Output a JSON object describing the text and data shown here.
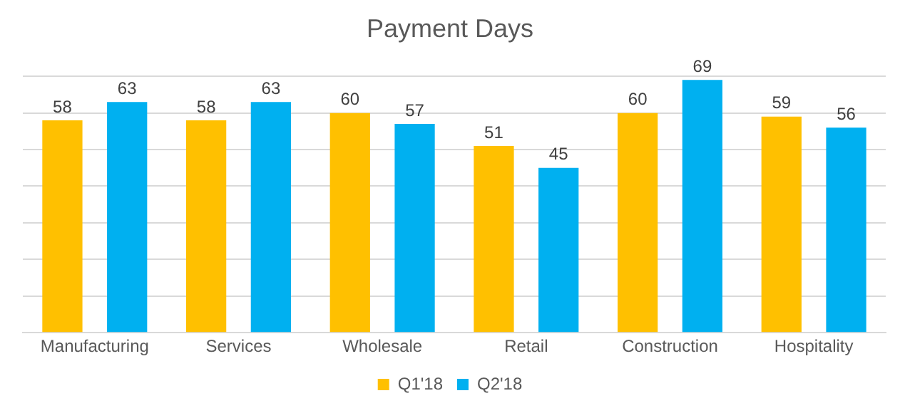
{
  "chart_data": {
    "type": "bar",
    "title": "Payment Days",
    "categories": [
      "Manufacturing",
      "Services",
      "Wholesale",
      "Retail",
      "Construction",
      "Hospitality"
    ],
    "series": [
      {
        "name": "Q1'18",
        "color": "#ffc000",
        "values": [
          58,
          58,
          60,
          51,
          60,
          59
        ]
      },
      {
        "name": "Q2'18",
        "color": "#00b0f0",
        "values": [
          63,
          63,
          57,
          45,
          69,
          56
        ]
      }
    ],
    "ylim": [
      0,
      70
    ],
    "yticks": [
      {
        "value": 0,
        "label": null
      },
      {
        "value": 10,
        "label": null
      },
      {
        "value": 20,
        "label": null
      },
      {
        "value": 30,
        "label": null
      },
      {
        "value": 40,
        "label": null
      },
      {
        "value": 50,
        "label": null
      },
      {
        "value": 60,
        "label": null
      },
      {
        "value": 70,
        "label": null
      }
    ],
    "grid": "y",
    "legend": "bottom",
    "data_labels": true
  }
}
